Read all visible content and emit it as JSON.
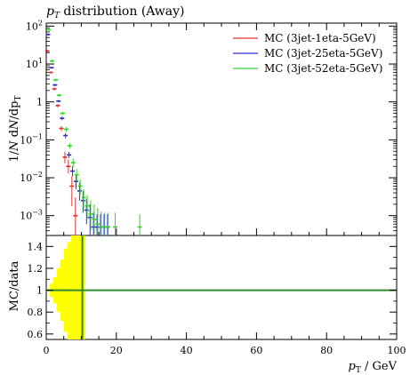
{
  "chart_data": [
    {
      "panel": "main",
      "type": "scatter",
      "title": "p_T distribution (Away)",
      "title_parts": {
        "var": "p",
        "sub": "T",
        "rest": " distribution (Away)"
      },
      "ylabel": "1/N dN/dp_T",
      "ylabel_parts": {
        "a": "1/",
        "N": "N",
        "b": " ",
        "d1": "d",
        "N2": "N",
        "c": "/",
        "d2": "dp",
        "sub": "T"
      },
      "yscale": "log",
      "ylim": [
        0.0003,
        120
      ],
      "xlim": [
        0,
        100
      ],
      "yticks": [
        {
          "value": 100,
          "label_base": "10",
          "label_exp": "2"
        },
        {
          "value": 10,
          "label_base": "10",
          "label_exp": "1"
        },
        {
          "value": 1,
          "label_base": "1",
          "label_exp": ""
        },
        {
          "value": 0.1,
          "label_base": "10",
          "label_exp": "−1"
        },
        {
          "value": 0.01,
          "label_base": "10",
          "label_exp": "−2"
        },
        {
          "value": 0.001,
          "label_base": "10",
          "label_exp": "−3"
        }
      ],
      "legend": {
        "placement": "top-right"
      },
      "series": [
        {
          "name": "MC (3jet-1eta-5GeV)",
          "color": "#e0302f",
          "points": [
            {
              "x": 0.5,
              "y": 22,
              "lo": 20,
              "hi": 24
            },
            {
              "x": 1.5,
              "y": 6,
              "lo": 5.6,
              "hi": 6.4
            },
            {
              "x": 2.5,
              "y": 2.2,
              "lo": 2.0,
              "hi": 2.4
            },
            {
              "x": 3.5,
              "y": 0.8,
              "lo": 0.72,
              "hi": 0.88
            },
            {
              "x": 4.5,
              "y": 0.2,
              "lo": 0.17,
              "hi": 0.23
            },
            {
              "x": 5.5,
              "y": 0.035,
              "lo": 0.024,
              "hi": 0.048
            },
            {
              "x": 6.5,
              "y": 0.02,
              "lo": 0.013,
              "hi": 0.03
            },
            {
              "x": 7.5,
              "y": 0.006,
              "lo": 0.0018,
              "hi": 0.011
            },
            {
              "x": 8.5,
              "y": 0.001,
              "lo": 0.0003,
              "hi": 0.003
            }
          ]
        },
        {
          "name": "MC (3jet-25eta-5GeV)",
          "color": "#2b2bd9",
          "points": [
            {
              "x": 0.5,
              "y": 60,
              "lo": 56,
              "hi": 64
            },
            {
              "x": 1.5,
              "y": 8,
              "lo": 7.5,
              "hi": 8.5
            },
            {
              "x": 2.5,
              "y": 2.8,
              "lo": 2.6,
              "hi": 3.0
            },
            {
              "x": 3.5,
              "y": 1.05,
              "lo": 0.97,
              "hi": 1.13
            },
            {
              "x": 4.5,
              "y": 0.37,
              "lo": 0.33,
              "hi": 0.41
            },
            {
              "x": 5.5,
              "y": 0.13,
              "lo": 0.11,
              "hi": 0.15
            },
            {
              "x": 6.5,
              "y": 0.04,
              "lo": 0.033,
              "hi": 0.048
            },
            {
              "x": 7.5,
              "y": 0.015,
              "lo": 0.011,
              "hi": 0.02
            },
            {
              "x": 8.5,
              "y": 0.008,
              "lo": 0.005,
              "hi": 0.012
            },
            {
              "x": 9.5,
              "y": 0.0045,
              "lo": 0.0025,
              "hi": 0.0075
            },
            {
              "x": 10.5,
              "y": 0.0025,
              "lo": 0.0012,
              "hi": 0.0045
            },
            {
              "x": 11.5,
              "y": 0.0014,
              "lo": 0.0006,
              "hi": 0.0028
            },
            {
              "x": 12.5,
              "y": 0.0009,
              "lo": 0.0003,
              "hi": 0.002
            },
            {
              "x": 13.5,
              "y": 0.0005,
              "lo": 0.0003,
              "hi": 0.0012
            },
            {
              "x": 14.5,
              "y": 0.0005,
              "lo": 0.0003,
              "hi": 0.0011
            },
            {
              "x": 15.5,
              "y": 0.0005,
              "lo": 0.0003,
              "hi": 0.0011
            },
            {
              "x": 16.5,
              "y": 0.0005,
              "lo": 0.0003,
              "hi": 0.0011
            },
            {
              "x": 17.5,
              "y": 0.0005,
              "lo": 0.0003,
              "hi": 0.0011
            }
          ]
        },
        {
          "name": "MC (3jet-52eta-5GeV)",
          "color": "#38d12e",
          "points": [
            {
              "x": 0.5,
              "y": 80,
              "lo": 74,
              "hi": 86
            },
            {
              "x": 1.5,
              "y": 12,
              "lo": 11,
              "hi": 13
            },
            {
              "x": 2.5,
              "y": 3.8,
              "lo": 3.5,
              "hi": 4.1
            },
            {
              "x": 3.5,
              "y": 1.5,
              "lo": 1.38,
              "hi": 1.62
            },
            {
              "x": 4.5,
              "y": 0.5,
              "lo": 0.45,
              "hi": 0.55
            },
            {
              "x": 5.5,
              "y": 0.19,
              "lo": 0.16,
              "hi": 0.22
            },
            {
              "x": 6.5,
              "y": 0.07,
              "lo": 0.058,
              "hi": 0.082
            },
            {
              "x": 7.5,
              "y": 0.025,
              "lo": 0.019,
              "hi": 0.032
            },
            {
              "x": 8.5,
              "y": 0.012,
              "lo": 0.008,
              "hi": 0.017
            },
            {
              "x": 9.5,
              "y": 0.006,
              "lo": 0.0035,
              "hi": 0.009
            },
            {
              "x": 10.5,
              "y": 0.003,
              "lo": 0.0015,
              "hi": 0.005
            },
            {
              "x": 11.5,
              "y": 0.0018,
              "lo": 0.0008,
              "hi": 0.0035
            },
            {
              "x": 12.5,
              "y": 0.0011,
              "lo": 0.0004,
              "hi": 0.0025
            },
            {
              "x": 13.5,
              "y": 0.0008,
              "lo": 0.0003,
              "hi": 0.002
            },
            {
              "x": 14.5,
              "y": 0.0006,
              "lo": 0.0003,
              "hi": 0.0016
            },
            {
              "x": 15.5,
              "y": 0.0005,
              "lo": 0.0003,
              "hi": 0.0013
            },
            {
              "x": 16.5,
              "y": 0.0005,
              "lo": 0.0003,
              "hi": 0.0012
            },
            {
              "x": 17.5,
              "y": 0.0005,
              "lo": 0.0003,
              "hi": 0.0012
            },
            {
              "x": 19.5,
              "y": 0.0005,
              "lo": 0.0003,
              "hi": 0.0012
            },
            {
              "x": 26.5,
              "y": 0.0005,
              "lo": 0.0003,
              "hi": 0.0011
            }
          ]
        }
      ]
    },
    {
      "panel": "ratio",
      "type": "area",
      "ylabel": "MC/data",
      "xlabel": "p_T / GeV",
      "xlabel_parts": {
        "var": "p",
        "sub": "T",
        "rest": " / GeV"
      },
      "xlim": [
        0,
        100
      ],
      "ylim": [
        0.55,
        1.5
      ],
      "xticks": [
        0,
        20,
        40,
        60,
        80,
        100
      ],
      "yticks": [
        0.6,
        0.8,
        1.0,
        1.2,
        1.4
      ],
      "ytick_labels": [
        "0.6",
        "0.8",
        "1",
        "1.2",
        "1.4"
      ],
      "reference_line": {
        "y": 1.0,
        "color": "#2e8b2e"
      },
      "band_color": "#ffff00",
      "band": [
        {
          "x0": 0,
          "x1": 1,
          "lo": 0.99,
          "hi": 1.01
        },
        {
          "x0": 1,
          "x1": 2,
          "lo": 0.94,
          "hi": 1.06
        },
        {
          "x0": 2,
          "x1": 3,
          "lo": 0.88,
          "hi": 1.12
        },
        {
          "x0": 3,
          "x1": 4,
          "lo": 0.8,
          "hi": 1.2
        },
        {
          "x0": 4,
          "x1": 5,
          "lo": 0.72,
          "hi": 1.28
        },
        {
          "x0": 5,
          "x1": 6,
          "lo": 0.62,
          "hi": 1.38
        },
        {
          "x0": 6,
          "x1": 7,
          "lo": 0.55,
          "hi": 1.44
        },
        {
          "x0": 7,
          "x1": 8,
          "lo": 0.55,
          "hi": 1.5
        },
        {
          "x0": 8,
          "x1": 9,
          "lo": 0.55,
          "hi": 1.5
        },
        {
          "x0": 9,
          "x1": 10,
          "lo": 0.55,
          "hi": 1.5
        },
        {
          "x0": 10,
          "x1": 11,
          "lo": 0.55,
          "hi": 1.5
        }
      ],
      "vertical_line": {
        "x": 10.3,
        "color": "#2e8b2e"
      }
    }
  ]
}
